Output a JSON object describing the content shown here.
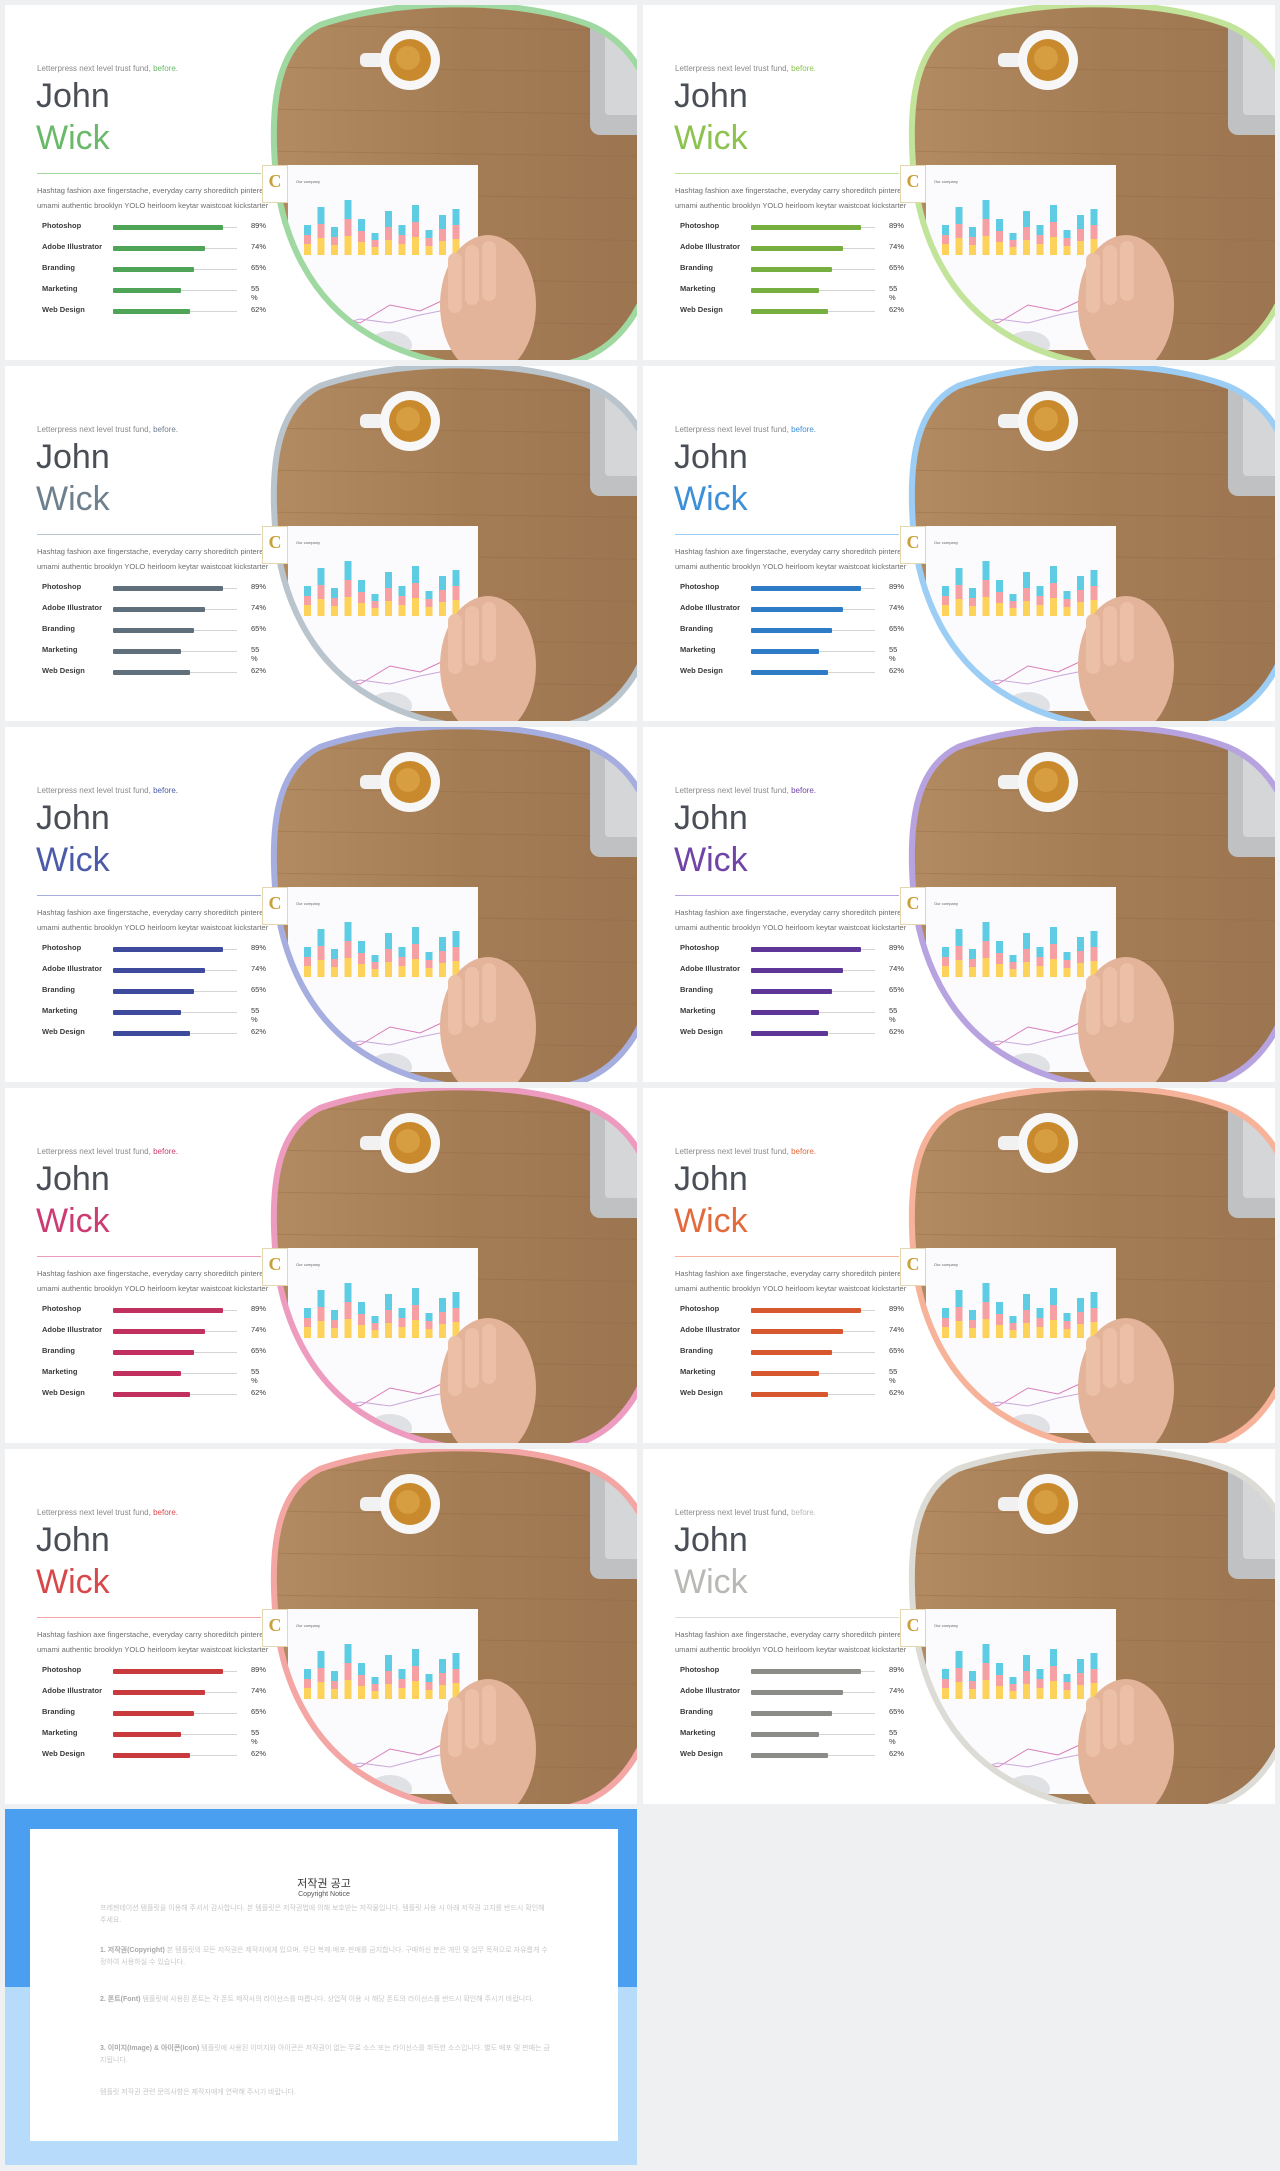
{
  "theme_slide": {
    "eyebrow": "Letterpress next level trust fund,",
    "eyebrow_accent": "before.",
    "first_name": "John",
    "last_name": "Wick",
    "description": "Hashtag fashion axe fingerstache, everyday carry shoreditch pinterest umami authentic brooklyn YOLO heirloom keytar waistcoat kickstarter",
    "chart_title": "Our company",
    "logo_letter": "C",
    "skills": [
      {
        "label": "Photoshop",
        "value": "89%",
        "pct": 89
      },
      {
        "label": "Adobe Illustrator",
        "value": "74%",
        "pct": 74
      },
      {
        "label": "Branding",
        "value": "65%",
        "pct": 65
      },
      {
        "label": "Marketing",
        "value": "55 %",
        "pct": 55
      },
      {
        "label": "Web Design",
        "value": "62%",
        "pct": 62
      }
    ]
  },
  "variants": [
    {
      "accent": "#6ab96b",
      "ring": "#9fd9a1",
      "bar": "#4fa557"
    },
    {
      "accent": "#8cc24f",
      "ring": "#c1e39a",
      "bar": "#76ae3f"
    },
    {
      "accent": "#6e7f8d",
      "ring": "#b9c4cc",
      "bar": "#5f6f7c"
    },
    {
      "accent": "#3d8fd8",
      "ring": "#9ccdf4",
      "bar": "#2f7cc6"
    },
    {
      "accent": "#4b5ba8",
      "ring": "#a6aee0",
      "bar": "#3e4b9c"
    },
    {
      "accent": "#6f44a6",
      "ring": "#b7a3e0",
      "bar": "#5e3698"
    },
    {
      "accent": "#cc3b72",
      "ring": "#ee9bc0",
      "bar": "#c1305f"
    },
    {
      "accent": "#e36a3c",
      "ring": "#f7b39a",
      "bar": "#d7582e"
    },
    {
      "accent": "#d8484b",
      "ring": "#f3a6a4",
      "bar": "#c93a3c"
    },
    {
      "accent": "#b8b8b4",
      "ring": "#dcdbd6",
      "bar": "#8b8b88"
    }
  ],
  "notice": {
    "title": "저작권 공고",
    "subtitle": "Copyright Notice",
    "paragraphs": [
      {
        "head": "",
        "body": "프레젠테이션 템플릿을 이용해 주셔서 감사합니다. 본 템플릿은 저작권법에 의해 보호받는 저작물입니다. 템플릿 사용 시 아래 저작권 고지를 반드시 확인해 주세요."
      },
      {
        "head": "1. 저작권(Copyright)",
        "body": "본 템플릿의 모든 저작권은 제작자에게 있으며, 무단 복제·배포·판매를 금지합니다. 구매하신 분은 개인 및 업무 목적으로 자유롭게 수정하여 사용하실 수 있습니다."
      },
      {
        "head": "2. 폰트(Font)",
        "body": "템플릿에 사용된 폰트는 각 폰트 제작사의 라이선스를 따릅니다. 상업적 이용 시 해당 폰트의 라이선스를 반드시 확인해 주시기 바랍니다."
      },
      {
        "head": "3. 이미지(Image) & 아이콘(Icon)",
        "body": "템플릿에 사용된 이미지와 아이콘은 저작권이 없는 무료 소스 또는 라이선스를 취득한 소스입니다. 별도 배포 및 판매는 금지됩니다."
      },
      {
        "head": "",
        "body": "템플릿 저작권 관련 문의사항은 제작자에게 연락해 주시기 바랍니다."
      }
    ]
  }
}
